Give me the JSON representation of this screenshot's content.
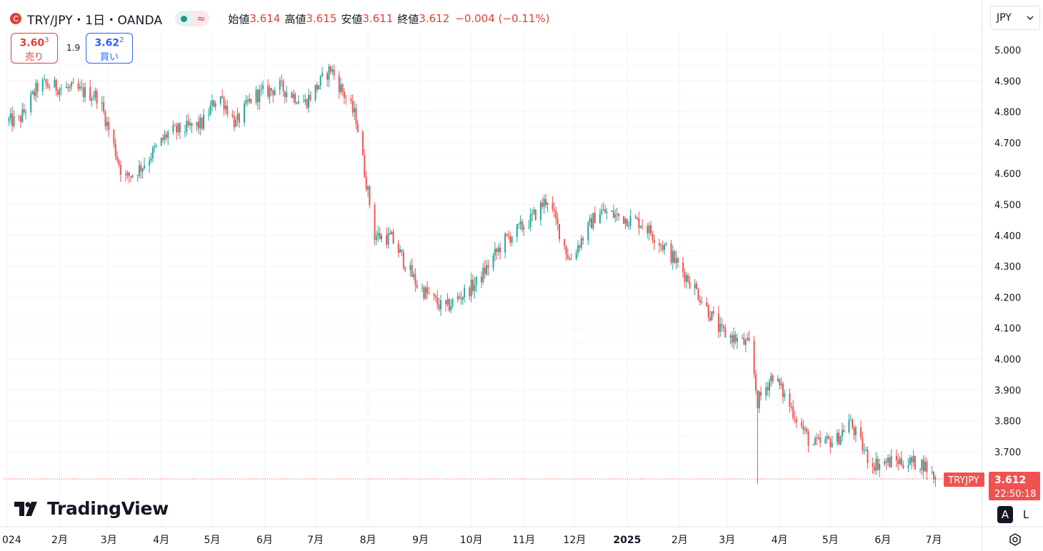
{
  "header": {
    "title": "TRY/JPY・1日・OANDA",
    "ohlc": [
      {
        "label": "始値",
        "value": "3.614"
      },
      {
        "label": "高値",
        "value": "3.615"
      },
      {
        "label": "安値",
        "value": "3.611"
      },
      {
        "label": "終値",
        "value": "3.612"
      }
    ],
    "change": "−0.004 (−0.11%)",
    "status_approx": "≈"
  },
  "trade": {
    "sell_price": "3.60",
    "sell_price_sup": "3",
    "sell_label": "売り",
    "spread": "1.9",
    "buy_price": "3.62",
    "buy_price_sup": "2",
    "buy_label": "買い"
  },
  "currency_selector": {
    "value": "JPY"
  },
  "price_tag": {
    "symbol": "TRYJPY",
    "price": "3.612",
    "countdown": "22:50:18"
  },
  "logo_text": "TradingView",
  "scale_buttons": {
    "auto": "A",
    "log": "L"
  },
  "colors": {
    "up": "#26a69a",
    "down": "#ef5350",
    "grid": "#f0f3fa",
    "price_line": "#ef5350"
  },
  "chart_data": {
    "type": "candlestick",
    "symbol": "TRY/JPY",
    "interval": "1日",
    "source": "OANDA",
    "y_axis": {
      "ticks": [
        "5.000",
        "4.900",
        "4.800",
        "4.700",
        "4.600",
        "4.500",
        "4.400",
        "4.300",
        "4.200",
        "4.100",
        "4.000",
        "3.900",
        "3.800",
        "3.700"
      ],
      "ylim": [
        3.52,
        5.08
      ]
    },
    "x_axis": {
      "ticks": [
        "024",
        "2月",
        "3月",
        "4月",
        "5月",
        "6月",
        "7月",
        "8月",
        "9月",
        "10月",
        "11月",
        "12月",
        "2025",
        "2月",
        "3月",
        "4月",
        "5月",
        "6月",
        "7月"
      ],
      "bold_ticks": [
        "2025"
      ]
    },
    "last_price": 3.612,
    "approx_close_path": [
      {
        "date": "2024-01-08",
        "close": 4.77
      },
      {
        "date": "2024-01-20",
        "close": 4.89
      },
      {
        "date": "2024-02-10",
        "close": 4.87
      },
      {
        "date": "2024-02-24",
        "close": 4.85
      },
      {
        "date": "2024-03-10",
        "close": 4.58
      },
      {
        "date": "2024-03-20",
        "close": 4.62
      },
      {
        "date": "2024-04-05",
        "close": 4.73
      },
      {
        "date": "2024-04-25",
        "close": 4.76
      },
      {
        "date": "2024-05-05",
        "close": 4.86
      },
      {
        "date": "2024-05-15",
        "close": 4.76
      },
      {
        "date": "2024-05-25",
        "close": 4.85
      },
      {
        "date": "2024-06-10",
        "close": 4.88
      },
      {
        "date": "2024-06-25",
        "close": 4.83
      },
      {
        "date": "2024-07-10",
        "close": 4.94
      },
      {
        "date": "2024-07-25",
        "close": 4.78
      },
      {
        "date": "2024-08-05",
        "close": 4.4
      },
      {
        "date": "2024-08-15",
        "close": 4.39
      },
      {
        "date": "2024-08-30",
        "close": 4.24
      },
      {
        "date": "2024-09-15",
        "close": 4.16
      },
      {
        "date": "2024-10-05",
        "close": 4.25
      },
      {
        "date": "2024-10-20",
        "close": 4.38
      },
      {
        "date": "2024-11-05",
        "close": 4.45
      },
      {
        "date": "2024-11-15",
        "close": 4.52
      },
      {
        "date": "2024-11-28",
        "close": 4.32
      },
      {
        "date": "2024-12-15",
        "close": 4.48
      },
      {
        "date": "2025-01-10",
        "close": 4.44
      },
      {
        "date": "2025-01-25",
        "close": 4.35
      },
      {
        "date": "2025-02-10",
        "close": 4.23
      },
      {
        "date": "2025-02-25",
        "close": 4.09
      },
      {
        "date": "2025-03-15",
        "close": 4.04
      },
      {
        "date": "2025-03-19",
        "close": 3.86
      },
      {
        "date": "2025-03-28",
        "close": 3.95
      },
      {
        "date": "2025-04-10",
        "close": 3.82
      },
      {
        "date": "2025-04-20",
        "close": 3.72
      },
      {
        "date": "2025-05-05",
        "close": 3.74
      },
      {
        "date": "2025-05-12",
        "close": 3.8
      },
      {
        "date": "2025-05-25",
        "close": 3.66
      },
      {
        "date": "2025-06-10",
        "close": 3.67
      },
      {
        "date": "2025-06-25",
        "close": 3.66
      },
      {
        "date": "2025-07-02",
        "close": 3.612
      }
    ]
  }
}
